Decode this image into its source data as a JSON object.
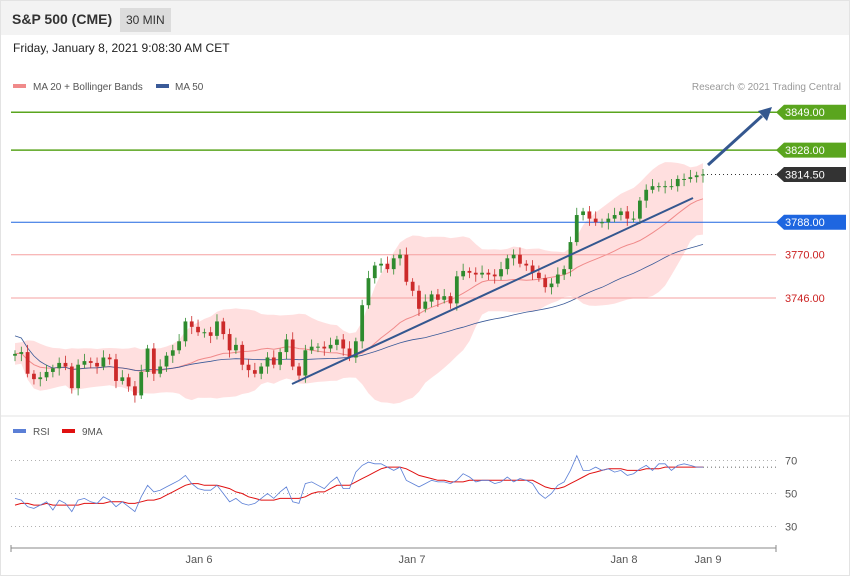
{
  "header": {
    "instrument": "S&P 500 (CME)",
    "interval": "30 MIN",
    "datetime": "Friday, January 8, 2021 9:08:30 AM CET"
  },
  "legend": {
    "ma20_bb": "MA 20 + Bollinger Bands",
    "ma50": "MA 50",
    "credit": "Research © 2021 Trading Central"
  },
  "colors": {
    "ma20": "#f08a8a",
    "ma50": "#3a5a98",
    "bb_fill": "#ffd9d9",
    "up": "#2e8b2e",
    "down": "#cc2a2a",
    "resistance": "#5aa51e",
    "support": "#f5a0a0",
    "pivot": "#1e66e0",
    "last": "#333333",
    "trend": "#34578f",
    "rsi": "#5b7fd6",
    "rsi_ma": "#e01010"
  },
  "chart_data": [
    {
      "type": "candlestick",
      "y_range": [
        3685,
        3858
      ],
      "levels": [
        {
          "label": "3849.00",
          "value": 3849.0,
          "kind": "resistance"
        },
        {
          "label": "3828.00",
          "value": 3828.0,
          "kind": "resistance"
        },
        {
          "label": "3814.50",
          "value": 3814.5,
          "kind": "last"
        },
        {
          "label": "3788.00",
          "value": 3788.0,
          "kind": "pivot"
        },
        {
          "label": "3770.00",
          "value": 3770.0,
          "kind": "support"
        },
        {
          "label": "3746.00",
          "value": 3746.0,
          "kind": "support"
        }
      ],
      "x_ticks": [
        "Jan 6",
        "Jan 7",
        "Jan 8",
        "Jan 9"
      ],
      "closes": [
        3715,
        3716,
        3704,
        3701,
        3702,
        3705,
        3707,
        3710,
        3708,
        3696,
        3709,
        3711,
        3710,
        3708,
        3713,
        3712,
        3700,
        3702,
        3697,
        3692,
        3705,
        3718,
        3704,
        3708,
        3714,
        3717,
        3722,
        3733,
        3730,
        3727,
        3727,
        3725,
        3733,
        3726,
        3717,
        3720,
        3709,
        3706,
        3704,
        3708,
        3713,
        3709,
        3716,
        3723,
        3708,
        3703,
        3717,
        3719,
        3719,
        3718,
        3720,
        3723,
        3718,
        3713,
        3722,
        3742,
        3757,
        3764,
        3765,
        3762,
        3768,
        3770,
        3755,
        3750,
        3740,
        3744,
        3748,
        3745,
        3747,
        3743,
        3758,
        3761,
        3760,
        3759,
        3760,
        3759,
        3758,
        3762,
        3768,
        3770,
        3765,
        3764,
        3760,
        3757,
        3752,
        3754,
        3759,
        3762,
        3777,
        3792,
        3794,
        3790,
        3788,
        3788,
        3790,
        3792,
        3794,
        3790,
        3790,
        3800,
        3806,
        3808,
        3808,
        3808,
        3808,
        3812,
        3812,
        3813,
        3814,
        3814.5
      ],
      "ma20_bb": "MA 20 + Bollinger Bands",
      "ma50": "MA 50"
    },
    {
      "type": "line",
      "name": "RSI",
      "y_range": [
        20,
        80
      ],
      "y_ticks": [
        70,
        50,
        30
      ],
      "series": [
        {
          "name": "RSI",
          "values": [
            47,
            46,
            42,
            41,
            43,
            45,
            40,
            46,
            44,
            39,
            46,
            47,
            45,
            44,
            48,
            46,
            42,
            45,
            42,
            39,
            48,
            55,
            51,
            52,
            54,
            56,
            58,
            61,
            56,
            53,
            52,
            52,
            55,
            50,
            45,
            47,
            44,
            43,
            44,
            47,
            50,
            47,
            51,
            54,
            45,
            44,
            56,
            57,
            55,
            53,
            57,
            60,
            53,
            53,
            63,
            67,
            69,
            68,
            68,
            66,
            64,
            66,
            58,
            56,
            54,
            56,
            58,
            57,
            57,
            56,
            58,
            62,
            60,
            57,
            58,
            58,
            56,
            57,
            60,
            57,
            59,
            58,
            56,
            50,
            47,
            50,
            55,
            57,
            64,
            73,
            64,
            64,
            66,
            64,
            65,
            63,
            64,
            61,
            62,
            65,
            67,
            64,
            68,
            68,
            64,
            67,
            68,
            67,
            66,
            66
          ]
        },
        {
          "name": "9MA",
          "values": [
            43,
            44,
            44,
            43,
            43,
            44,
            43,
            43,
            43,
            43,
            43,
            44,
            44,
            44,
            44,
            45,
            45,
            45,
            44,
            44,
            45,
            46,
            46,
            47,
            49,
            51,
            53,
            55,
            56,
            56,
            55,
            55,
            55,
            54,
            53,
            51,
            50,
            48,
            47,
            46,
            46,
            46,
            47,
            47,
            47,
            47,
            48,
            50,
            51,
            51,
            53,
            55,
            55,
            55,
            57,
            59,
            61,
            63,
            65,
            66,
            66,
            66,
            65,
            63,
            61,
            60,
            59,
            58,
            58,
            57,
            57,
            57,
            58,
            58,
            58,
            58,
            58,
            58,
            58,
            58,
            58,
            58,
            58,
            56,
            54,
            53,
            53,
            54,
            56,
            58,
            60,
            62,
            63,
            64,
            65,
            65,
            65,
            64,
            64,
            64,
            65,
            65,
            65,
            66,
            66,
            66,
            66,
            66,
            66,
            66
          ]
        }
      ]
    }
  ]
}
